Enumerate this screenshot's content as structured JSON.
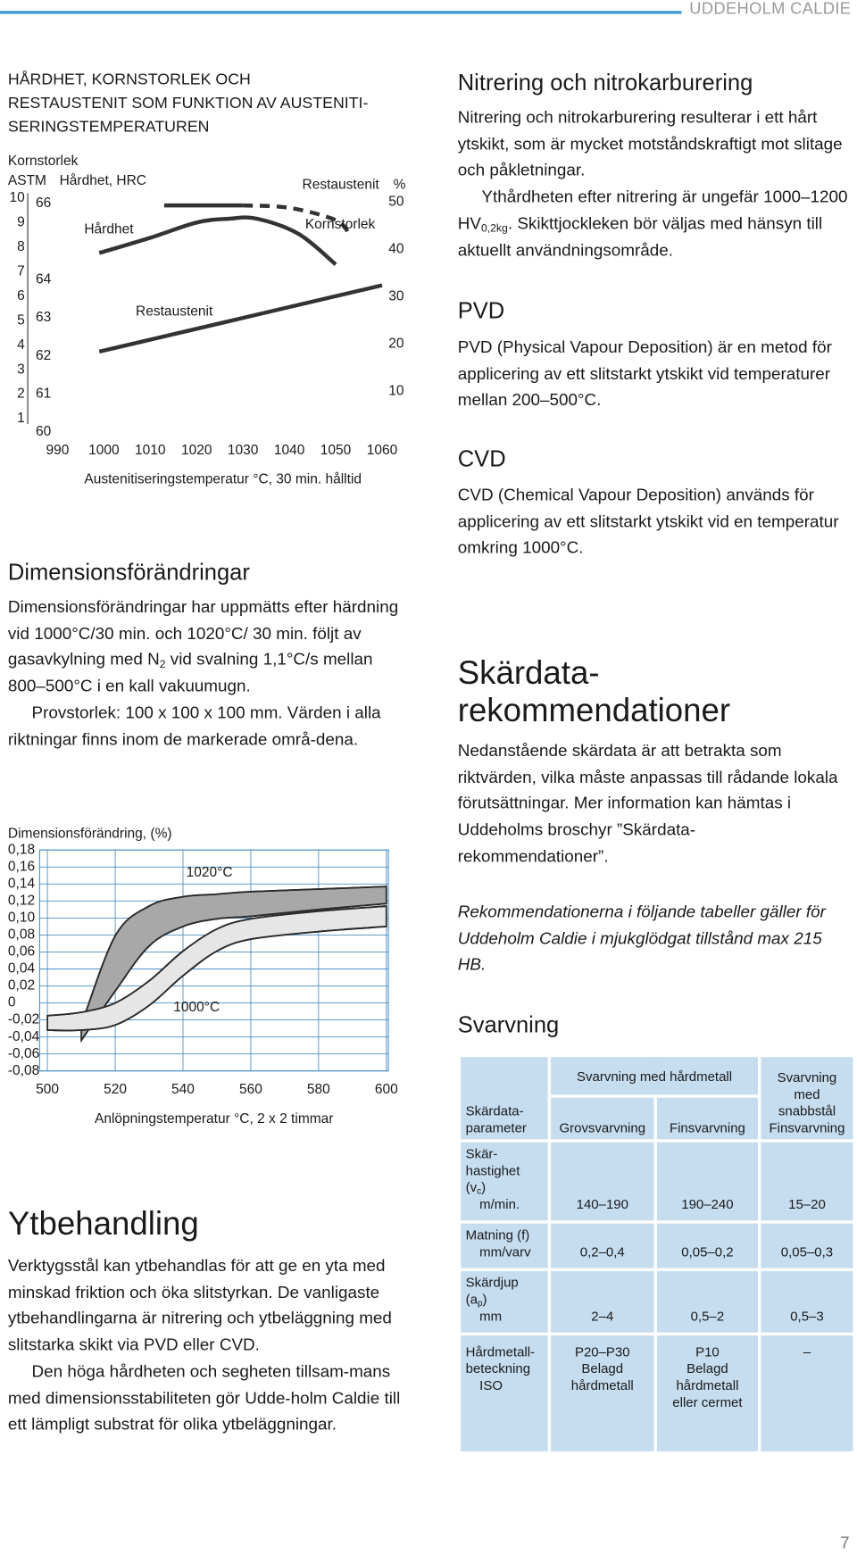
{
  "header": {
    "brand": "UDDEHOLM CALDIE"
  },
  "page_number": 7,
  "chart_data": [
    {
      "type": "line",
      "title": [
        "HÅRDHET, KORNSTORLEK OCH",
        "RESTAUSTENIT SOM FUNKTION AV AUSTENITI-",
        "SERINGSTEMPERATUREN"
      ],
      "y_label": [
        "Kornstorlek",
        "ASTM"
      ],
      "y3_label": "Hårdhet, HRC",
      "y2_label": [
        "Restaustenit",
        "%"
      ],
      "x_label": "Austenitiseringstemperatur °C,  30 min. hålltid",
      "xlim": [
        984,
        1062
      ],
      "xticks": [
        990,
        1000,
        1010,
        1020,
        1030,
        1040,
        1050,
        1060
      ],
      "ylim": [
        0.3,
        10.4
      ],
      "yticks": [
        1,
        2,
        3,
        4,
        5,
        6,
        7,
        8,
        9,
        10
      ],
      "y3lim": [
        59.9,
        66.4
      ],
      "y3ticks": [
        60,
        61,
        62,
        63,
        64,
        66
      ],
      "y2lim": [
        0.6,
        52.9
      ],
      "y2ticks": [
        10,
        20,
        30,
        40,
        50
      ],
      "grid": false,
      "series": [
        {
          "name": "Hårdhet",
          "axis": "y3",
          "color": "#333333",
          "x": [
            999,
            1010,
            1020,
            1027,
            1033,
            1042,
            1050
          ],
          "values": [
            64.7,
            65.1,
            65.5,
            65.6,
            65.6,
            65.2,
            64.4
          ]
        },
        {
          "name": "Kornstorlek",
          "axis": "y",
          "color": "#333333",
          "x": [
            1013,
            1020,
            1030,
            1040,
            1050,
            1053
          ],
          "values": [
            9.7,
            9.7,
            9.7,
            9.6,
            9.1,
            8.5
          ],
          "dashed_from": 1030
        },
        {
          "name": "Restaustenit",
          "axis": "y2",
          "color": "#333333",
          "x": [
            999,
            1060
          ],
          "values": [
            18.4,
            32.4
          ]
        }
      ]
    },
    {
      "type": "band",
      "y_label": "Dimensionsförändring, (%)",
      "x_label": "Anlöpningstemperatur °C,  2 x 2 timmar",
      "xlim": [
        497.7,
        600.6
      ],
      "xticks": [
        500,
        520,
        540,
        560,
        580,
        600
      ],
      "ylim": [
        -0.08,
        0.18
      ],
      "yticks": [
        {
          "value": -0.08,
          "label": "-0,08"
        },
        {
          "value": -0.06,
          "label": "-0,06"
        },
        {
          "value": -0.04,
          "label": "-0,04"
        },
        {
          "value": -0.02,
          "label": "-0,02"
        },
        0,
        {
          "value": 0.02,
          "label": "0,02"
        },
        {
          "value": 0.04,
          "label": "0,04"
        },
        {
          "value": 0.06,
          "label": "0,06"
        },
        {
          "value": 0.08,
          "label": "0,08"
        },
        {
          "value": 0.1,
          "label": "0,10"
        },
        {
          "value": 0.12,
          "label": "0,12"
        },
        {
          "value": 0.14,
          "label": "0,14"
        },
        {
          "value": 0.16,
          "label": "0,16"
        },
        {
          "value": 0.18,
          "label": "0,18"
        }
      ],
      "grid": true,
      "series": [
        {
          "name": "1020°C",
          "color": "#a8a8a8",
          "x": [
            510,
            520,
            530,
            540,
            550,
            560,
            580,
            600
          ],
          "upper": [
            -0.026,
            0.079,
            0.114,
            0.125,
            0.128,
            0.131,
            0.134,
            0.137
          ],
          "lower": [
            -0.044,
            0.014,
            0.067,
            0.09,
            0.099,
            0.102,
            0.11,
            0.117
          ]
        },
        {
          "name": "1000°C",
          "color": "#e6e6e6",
          "x": [
            500,
            510,
            520,
            530,
            540,
            550,
            560,
            580,
            600
          ],
          "upper": [
            -0.015,
            -0.011,
            0,
            0.026,
            0.061,
            0.087,
            0.099,
            0.108,
            0.114
          ],
          "lower": [
            -0.032,
            -0.032,
            -0.026,
            -0.003,
            0.032,
            0.061,
            0.075,
            0.084,
            0.09
          ]
        }
      ]
    }
  ],
  "sections": {
    "dimension": {
      "heading": "Dimensionsförändringar",
      "paragraphs": [
        [
          "Dimensionsförändringar har uppmätts efter härdning vid 1000°C/30 min. och 1020°C/ 30 min. följt av gasavkylning med N",
          {
            "sub": "2"
          },
          " vid svalning 1,1°C/s mellan 800–500°C i en kall vakuumugn."
        ],
        [
          "Provstorlek: 100 x 100 x 100 mm. Värden i alla riktningar finns inom de markerade områ-dena."
        ]
      ]
    },
    "surface": {
      "heading": "Ytbehandling",
      "paragraphs": [
        [
          "Verktygsstål kan ytbehandlas för att ge en yta med minskad friktion och öka slitstyrkan. De vanligaste ytbehandlingarna är nitrering och ytbeläggning med slitstarka skikt via PVD eller CVD."
        ],
        [
          "Den höga hårdheten och segheten tillsam-mans med dimensionsstabiliteten gör Udde-holm Caldie till ett lämpligt substrat för olika ytbeläggningar."
        ]
      ]
    },
    "nitriding": {
      "heading": "Nitrering och nitrokarburering",
      "paragraphs": [
        [
          "Nitrering och nitrokarburering resulterar i ett hårt ytskikt, som är mycket motståndskraftigt mot slitage och påkletningar."
        ],
        [
          "Ythårdheten efter nitrering är ungefär 1000–1200 HV",
          {
            "sub": "0,2kg"
          },
          ". Skikttjockleken bör väljas med hänsyn till aktuellt användningsområde."
        ]
      ]
    },
    "pvd": {
      "heading": "PVD",
      "paragraphs": [
        [
          "PVD (Physical Vapour Deposition) är en metod för applicering av ett slitstarkt ytskikt vid temperaturer mellan 200–500°C."
        ]
      ]
    },
    "cvd": {
      "heading": "CVD",
      "paragraphs": [
        [
          "CVD (Chemical Vapour Deposition) används för applicering av ett slitstarkt ytskikt vid en temperatur omkring 1000°C."
        ]
      ]
    },
    "cutting": {
      "heading": [
        "Skärdata-",
        "rekommendationer"
      ],
      "paragraphs": [
        [
          "Nedanstående skärdata är att betrakta som riktvärden, vilka måste anpassas till rådande lokala förutsättningar. Mer information kan hämtas i Uddeholms broschyr ”Skärdata-rekommendationer”."
        ]
      ],
      "note": "Rekommendationerna i följande tabeller gäller för Uddeholm Caldie i mjukglödgat tillstånd max 215 HB.",
      "subheading": "Svarvning"
    }
  },
  "table": {
    "header": {
      "param": "Skärdata-parameter",
      "group": "Svarvning med hårdmetall",
      "hss_group": "Svarvning med snabbstål",
      "columns": [
        "Grovsvarvning",
        "Finsvarvning",
        "Finsvarvning"
      ]
    },
    "rows": [
      {
        "param": [
          "Skär-hastighet (v",
          {
            "sub": "c"
          },
          ")"
        ],
        "unit": "m/min.",
        "values": [
          "140–190",
          "190–240",
          "15–20"
        ]
      },
      {
        "param": [
          "Matning (f)"
        ],
        "unit": "mm/varv",
        "values": [
          "0,2–0,4",
          "0,05–0,2",
          "0,05–0,3"
        ]
      },
      {
        "param": [
          "Skärdjup (a",
          {
            "sub": "p"
          },
          ")"
        ],
        "unit": "mm",
        "values": [
          "2–4",
          "0,5–2",
          "0,5–3"
        ]
      },
      {
        "param": [
          "Hårdmetall-beteckning"
        ],
        "unit": "ISO",
        "values": [
          [
            "P20–P30",
            "Belagd",
            "hårdmetall"
          ],
          [
            "P10",
            "Belagd",
            "hårdmetall",
            "eller cermet"
          ],
          "–"
        ]
      }
    ]
  }
}
